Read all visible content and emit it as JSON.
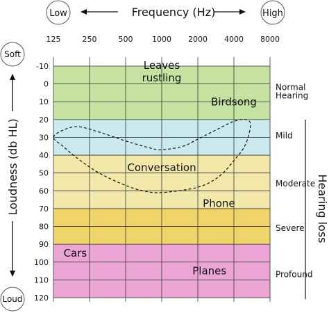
{
  "chart_data": {
    "type": "area",
    "title": "",
    "xlabel": "Frequency (Hz)",
    "ylabel": "Loudness (db HL)",
    "x_scale": "log",
    "y_inverted": true,
    "x_ticks": [
      125,
      250,
      500,
      1000,
      2000,
      4000,
      8000
    ],
    "y_ticks": [
      -10,
      0,
      10,
      20,
      30,
      40,
      50,
      60,
      70,
      80,
      90,
      100,
      110,
      120
    ],
    "xlim": [
      125,
      8000
    ],
    "ylim": [
      -10,
      120
    ],
    "grid": true,
    "x_end_labels": {
      "low": "Low",
      "high": "High"
    },
    "y_end_labels": {
      "soft": "Soft",
      "loud": "Loud"
    },
    "hearing_loss_label": "Hearing loss",
    "bands": [
      {
        "name": "Normal Hearing",
        "lines": [
          "Normal",
          "Hearing"
        ],
        "from": -10,
        "to": 20,
        "color": "#c5e2a0"
      },
      {
        "name": "Mild",
        "lines": [
          "Mild"
        ],
        "from": 20,
        "to": 40,
        "color": "#c9e9ef"
      },
      {
        "name": "Moderate",
        "lines": [
          "Moderate"
        ],
        "from": 40,
        "to": 70,
        "color": "#f1e8a9"
      },
      {
        "name": "Severe",
        "lines": [
          "Severe"
        ],
        "from": 70,
        "to": 90,
        "color": "#f0d46a"
      },
      {
        "name": "Profound",
        "lines": [
          "Profound"
        ],
        "from": 90,
        "to": 120,
        "color": "#eaa5d4"
      }
    ],
    "sounds": [
      {
        "name": "Leaves rustling",
        "lines": [
          "Leaves",
          "rustling"
        ],
        "x": 1000,
        "y": -5
      },
      {
        "name": "Birdsong",
        "lines": [
          "Birdsong"
        ],
        "x": 4000,
        "y": 12
      },
      {
        "name": "Conversation",
        "lines": [
          "Conversation"
        ],
        "x": 1000,
        "y": 49
      },
      {
        "name": "Phone",
        "lines": [
          "Phone"
        ],
        "x": 3000,
        "y": 69
      },
      {
        "name": "Cars",
        "lines": [
          "Cars"
        ],
        "x": 190,
        "y": 97
      },
      {
        "name": "Planes",
        "lines": [
          "Planes"
        ],
        "x": 2500,
        "y": 107
      }
    ],
    "speech_banana": {
      "style": "dashed",
      "points": [
        [
          125,
          30
        ],
        [
          150,
          26
        ],
        [
          200,
          24
        ],
        [
          300,
          27
        ],
        [
          500,
          32
        ],
        [
          800,
          36
        ],
        [
          1000,
          37
        ],
        [
          1500,
          35
        ],
        [
          2000,
          31
        ],
        [
          3000,
          25
        ],
        [
          4000,
          21
        ],
        [
          5000,
          20
        ],
        [
          5500,
          23
        ],
        [
          5000,
          34
        ],
        [
          4000,
          43
        ],
        [
          3000,
          52
        ],
        [
          2000,
          58
        ],
        [
          1000,
          61
        ],
        [
          700,
          60
        ],
        [
          500,
          57
        ],
        [
          300,
          50
        ],
        [
          200,
          42
        ],
        [
          150,
          35
        ]
      ]
    }
  }
}
